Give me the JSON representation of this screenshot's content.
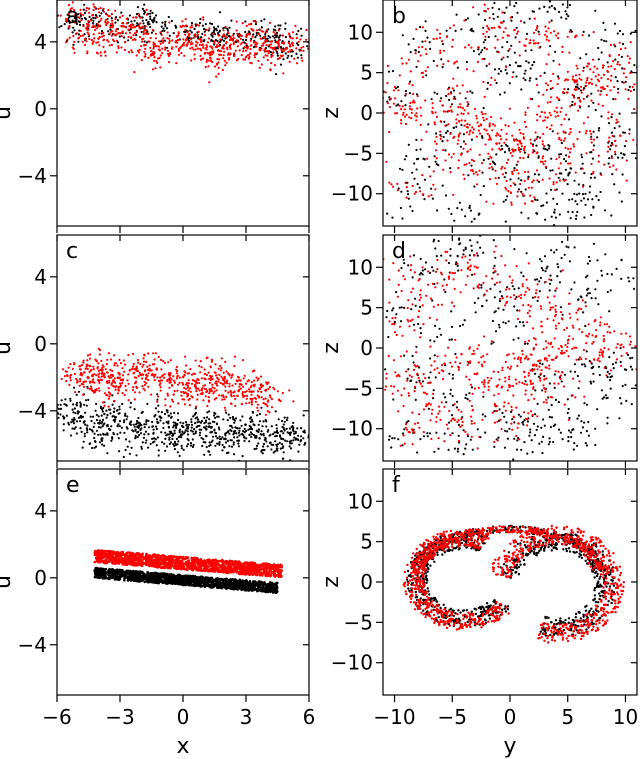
{
  "colors": {
    "series_black": "#000000",
    "series_red": "#ff0000"
  },
  "chart_data": [
    {
      "type": "scatter",
      "panel": "a",
      "xlabel": "",
      "ylabel": "u",
      "xlim": [
        -6,
        6
      ],
      "ylim": [
        -7,
        6.5
      ],
      "xticks": [
        -6,
        -3,
        0,
        3,
        6
      ],
      "yticks": [
        4,
        0,
        -4
      ],
      "ytick_labels": [
        "4",
        "0",
        "−4"
      ],
      "series": [
        {
          "color": "black",
          "points": [
            [
              -4.5,
              5.3
            ],
            [
              -3,
              5.0
            ],
            [
              -1.5,
              5.1
            ],
            [
              0,
              4.7
            ],
            [
              1.5,
              4.6
            ],
            [
              3,
              4.2
            ],
            [
              4.5,
              4.0
            ],
            [
              5,
              3.6
            ],
            [
              -5,
              5.0
            ],
            [
              -2,
              4.8
            ],
            [
              2,
              4.3
            ],
            [
              4,
              4.4
            ]
          ]
        },
        {
          "color": "red",
          "points": [
            [
              -5,
              5.4
            ],
            [
              -4,
              4.8
            ],
            [
              -3,
              4.3
            ],
            [
              -2,
              4.0
            ],
            [
              -1,
              3.8
            ],
            [
              0,
              3.7
            ],
            [
              1,
              3.6
            ],
            [
              2,
              3.6
            ],
            [
              3,
              3.5
            ],
            [
              4,
              3.6
            ],
            [
              5,
              3.9
            ],
            [
              -4.5,
              4.0
            ],
            [
              -2.5,
              5.0
            ],
            [
              0.5,
              4.5
            ],
            [
              2.5,
              4.2
            ],
            [
              4.5,
              3.3
            ],
            [
              -1.5,
              3.2
            ],
            [
              1.5,
              3.0
            ],
            [
              3.5,
              4.5
            ],
            [
              -3.5,
              5.3
            ]
          ]
        }
      ]
    },
    {
      "type": "scatter",
      "panel": "b",
      "xlabel": "",
      "ylabel": "z",
      "xlim": [
        -11,
        11
      ],
      "ylim": [
        -14,
        14
      ],
      "xticks": [
        -10,
        -5,
        0,
        5,
        10
      ],
      "yticks": [
        10,
        5,
        0,
        -5,
        -10
      ],
      "ytick_labels": [
        "10",
        "5",
        "0",
        "−5",
        "−10"
      ],
      "series": [
        {
          "color": "black",
          "points": [
            [
              -9,
              -10
            ],
            [
              -7,
              8
            ],
            [
              -5,
              -3
            ],
            [
              -3,
              11
            ],
            [
              -1,
              -6
            ],
            [
              0,
              4
            ],
            [
              1,
              -9
            ],
            [
              2,
              6
            ],
            [
              3,
              -4
            ],
            [
              4,
              12
            ],
            [
              5,
              -7
            ],
            [
              6,
              2
            ],
            [
              7,
              -11
            ],
            [
              8,
              9
            ],
            [
              9,
              -2
            ],
            [
              10,
              5
            ],
            [
              -10,
              3
            ],
            [
              -8,
              -6
            ],
            [
              -6,
              1
            ],
            [
              -4,
              -12
            ],
            [
              -2,
              7
            ],
            [
              1,
              13
            ],
            [
              3,
              -13
            ],
            [
              6,
              -10
            ],
            [
              8,
              -5
            ]
          ]
        },
        {
          "color": "red",
          "points": [
            [
              -10,
              1
            ],
            [
              -9,
              0.5
            ],
            [
              -7,
              0
            ],
            [
              -5,
              0
            ],
            [
              -3,
              -1
            ],
            [
              -2,
              -2
            ],
            [
              -1,
              -3
            ],
            [
              0,
              -4
            ],
            [
              1,
              -5
            ],
            [
              2,
              -3
            ],
            [
              3,
              0
            ],
            [
              4,
              2
            ],
            [
              5,
              3
            ],
            [
              6,
              4
            ],
            [
              7,
              5
            ],
            [
              8,
              2
            ],
            [
              9,
              4
            ],
            [
              10,
              7
            ],
            [
              -8,
              6
            ],
            [
              -6,
              9
            ],
            [
              -4,
              4
            ],
            [
              -2,
              11
            ],
            [
              0,
              8
            ],
            [
              2,
              10
            ],
            [
              4,
              9
            ],
            [
              -6,
              -4
            ],
            [
              -4,
              -6
            ],
            [
              -1,
              -8
            ],
            [
              1,
              -10
            ],
            [
              3,
              -7
            ],
            [
              5,
              -4
            ],
            [
              -8,
              -9
            ],
            [
              7,
              -6
            ],
            [
              9,
              -3
            ]
          ]
        }
      ]
    },
    {
      "type": "scatter",
      "panel": "c",
      "xlabel": "",
      "ylabel": "u",
      "xlim": [
        -6,
        6
      ],
      "ylim": [
        -7,
        6.5
      ],
      "xticks": [
        -6,
        -3,
        0,
        3,
        6
      ],
      "yticks": [
        4,
        0,
        -4
      ],
      "ytick_labels": [
        "4",
        "0",
        "−4"
      ],
      "series": [
        {
          "color": "black",
          "points": [
            [
              -5.5,
              -4.3
            ],
            [
              -4.5,
              -4.6
            ],
            [
              -3.5,
              -4.8
            ],
            [
              -2.5,
              -4.9
            ],
            [
              -1.5,
              -5.0
            ],
            [
              -0.5,
              -5.1
            ],
            [
              0.5,
              -5.2
            ],
            [
              1.5,
              -5.3
            ],
            [
              2.5,
              -5.3
            ],
            [
              3.5,
              -5.5
            ],
            [
              4.5,
              -5.4
            ],
            [
              5.5,
              -5.8
            ],
            [
              -5,
              -3.8
            ],
            [
              -3,
              -4.2
            ],
            [
              -1,
              -4.5
            ],
            [
              1,
              -4.6
            ],
            [
              3,
              -4.7
            ],
            [
              5,
              -5.0
            ],
            [
              -4,
              -5.5
            ],
            [
              -2,
              -5.7
            ],
            [
              0,
              -5.9
            ],
            [
              2,
              -6.0
            ],
            [
              4,
              -6.1
            ]
          ]
        },
        {
          "color": "red",
          "points": [
            [
              -5,
              -1.8
            ],
            [
              -4.5,
              -2.3
            ],
            [
              -4,
              -2.0
            ],
            [
              -3,
              -1.5
            ],
            [
              -2.5,
              -2.5
            ],
            [
              -2,
              -1.8
            ],
            [
              -1,
              -2.2
            ],
            [
              0,
              -2.0
            ],
            [
              0.5,
              -2.7
            ],
            [
              1,
              -2.3
            ],
            [
              2,
              -2.5
            ],
            [
              2.5,
              -3.0
            ],
            [
              3,
              -2.6
            ],
            [
              3.5,
              -3.2
            ],
            [
              4,
              -2.8
            ],
            [
              -3.5,
              -2.8
            ],
            [
              -1.5,
              -1.2
            ],
            [
              1.5,
              -1.6
            ],
            [
              -4,
              -1.2
            ],
            [
              0,
              -3.0
            ]
          ]
        }
      ]
    },
    {
      "type": "scatter",
      "panel": "d",
      "xlabel": "",
      "ylabel": "z",
      "xlim": [
        -11,
        11
      ],
      "ylim": [
        -14,
        14
      ],
      "xticks": [
        -10,
        -5,
        0,
        5,
        10
      ],
      "yticks": [
        10,
        5,
        0,
        -5,
        -10
      ],
      "ytick_labels": [
        "10",
        "5",
        "0",
        "−5",
        "−10"
      ],
      "series": [
        {
          "color": "black",
          "points": [
            [
              -9,
              -11
            ],
            [
              -7,
              10
            ],
            [
              -5,
              -6
            ],
            [
              -3,
              12
            ],
            [
              -1,
              -9
            ],
            [
              0,
              3
            ],
            [
              1,
              -12
            ],
            [
              2,
              8
            ],
            [
              3,
              -4
            ],
            [
              4,
              11
            ],
            [
              5,
              -8
            ],
            [
              6,
              6
            ],
            [
              7,
              -3
            ],
            [
              8,
              9
            ],
            [
              9,
              -6
            ],
            [
              10,
              -2
            ],
            [
              -10,
              4
            ],
            [
              -8,
              -3
            ],
            [
              -6,
              1
            ],
            [
              -4,
              -12
            ],
            [
              -2,
              7
            ],
            [
              2,
              -10
            ],
            [
              6,
              -11
            ],
            [
              -5,
              13
            ]
          ]
        },
        {
          "color": "red",
          "points": [
            [
              -10,
              -3
            ],
            [
              -8,
              -5
            ],
            [
              -6,
              -2
            ],
            [
              -4,
              -1
            ],
            [
              -2,
              -3
            ],
            [
              0,
              -4
            ],
            [
              1,
              -3
            ],
            [
              2,
              -2
            ],
            [
              3,
              -1
            ],
            [
              4,
              0
            ],
            [
              6,
              0
            ],
            [
              8,
              0
            ],
            [
              10,
              0
            ],
            [
              -9,
              3
            ],
            [
              -7,
              6
            ],
            [
              -5,
              9
            ],
            [
              -3,
              10
            ],
            [
              -1,
              8
            ],
            [
              1,
              6
            ],
            [
              3,
              5
            ],
            [
              5,
              4
            ],
            [
              7,
              2
            ],
            [
              -6,
              -8
            ],
            [
              -4,
              -10
            ],
            [
              -2,
              -7
            ],
            [
              0,
              -9
            ],
            [
              2,
              -6
            ],
            [
              4,
              -4
            ],
            [
              -8,
              -10
            ],
            [
              -9,
              9
            ]
          ]
        }
      ]
    },
    {
      "type": "scatter",
      "panel": "e",
      "xlabel": "x",
      "ylabel": "u",
      "xlim": [
        -6,
        6
      ],
      "ylim": [
        -7,
        6.5
      ],
      "xticks": [
        -6,
        -3,
        0,
        3,
        6
      ],
      "yticks": [
        4,
        0,
        -4
      ],
      "xtick_labels": [
        "−6",
        "−3",
        "0",
        "3",
        "6"
      ],
      "ytick_labels": [
        "4",
        "0",
        "−4"
      ],
      "series": [
        {
          "color": "black",
          "band": {
            "x": [
              -4.2,
              4.5
            ],
            "y_center": [
              0.3,
              -0.6
            ],
            "width": 0.6
          }
        },
        {
          "color": "red",
          "band": {
            "x": [
              -4.2,
              4.7
            ],
            "y_center": [
              1.3,
              0.4
            ],
            "width": 0.75
          }
        }
      ]
    },
    {
      "type": "scatter",
      "panel": "f",
      "xlabel": "y",
      "ylabel": "z",
      "xlim": [
        -11,
        11
      ],
      "ylim": [
        -14,
        14
      ],
      "xticks": [
        -10,
        -5,
        0,
        5,
        10
      ],
      "yticks": [
        10,
        5,
        0,
        -5,
        -10
      ],
      "xtick_labels": [
        "−10",
        "−5",
        "0",
        "5",
        "10"
      ],
      "ytick_labels": [
        "10",
        "5",
        "0",
        "−5",
        "−10"
      ],
      "series": [
        {
          "color": "black",
          "shape": "horseshoe"
        },
        {
          "color": "red",
          "shape": "horseshoe"
        }
      ]
    }
  ]
}
